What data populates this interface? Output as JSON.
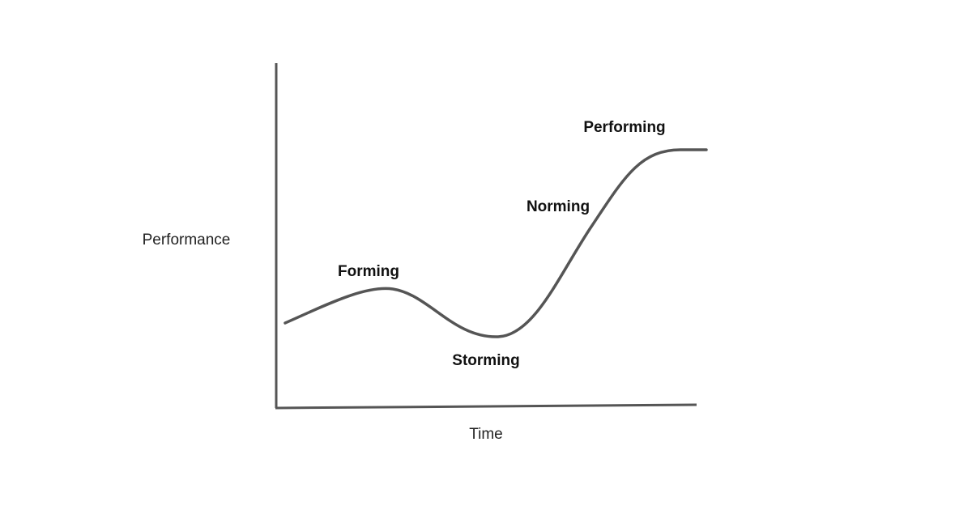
{
  "axes": {
    "y_label": "Performance",
    "x_label": "Time"
  },
  "stages": [
    "Forming",
    "Storming",
    "Norming",
    "Performing"
  ]
}
